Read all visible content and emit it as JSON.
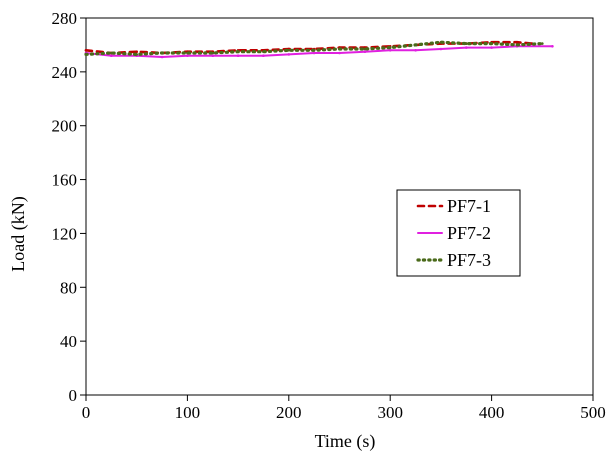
{
  "chart_data": {
    "type": "line",
    "xlabel": "Time (s)",
    "ylabel": "Load (kN)",
    "xlim": [
      0,
      500
    ],
    "ylim": [
      0,
      280
    ],
    "xticks": [
      0,
      100,
      200,
      300,
      400,
      500
    ],
    "yticks": [
      0,
      40,
      80,
      120,
      160,
      200,
      240,
      280
    ],
    "grid": false,
    "legend_position": "right",
    "series": [
      {
        "name": "PF7-1",
        "color": "#c00000",
        "style": "dashed",
        "x": [
          0,
          25,
          50,
          75,
          100,
          125,
          150,
          175,
          200,
          225,
          250,
          275,
          300,
          325,
          350,
          375,
          400,
          425,
          440
        ],
        "y": [
          256,
          254,
          255,
          254,
          255,
          255,
          256,
          256,
          257,
          257,
          258,
          258,
          259,
          260,
          261,
          261,
          262,
          262,
          261
        ]
      },
      {
        "name": "PF7-2",
        "color": "#e020e0",
        "style": "solid",
        "x": [
          0,
          25,
          50,
          75,
          100,
          125,
          150,
          175,
          200,
          225,
          250,
          275,
          300,
          325,
          350,
          375,
          400,
          425,
          460
        ],
        "y": [
          254,
          252,
          252,
          251,
          252,
          252,
          252,
          252,
          253,
          254,
          254,
          255,
          256,
          256,
          257,
          258,
          258,
          259,
          259
        ]
      },
      {
        "name": "PF7-3",
        "color": "#4a6a1a",
        "style": "dotted",
        "x": [
          0,
          25,
          50,
          75,
          100,
          125,
          150,
          175,
          200,
          225,
          250,
          275,
          300,
          325,
          350,
          375,
          400,
          425,
          450
        ],
        "y": [
          253,
          254,
          253,
          254,
          254,
          254,
          255,
          255,
          256,
          256,
          257,
          257,
          258,
          260,
          262,
          261,
          261,
          260,
          261
        ]
      }
    ]
  }
}
